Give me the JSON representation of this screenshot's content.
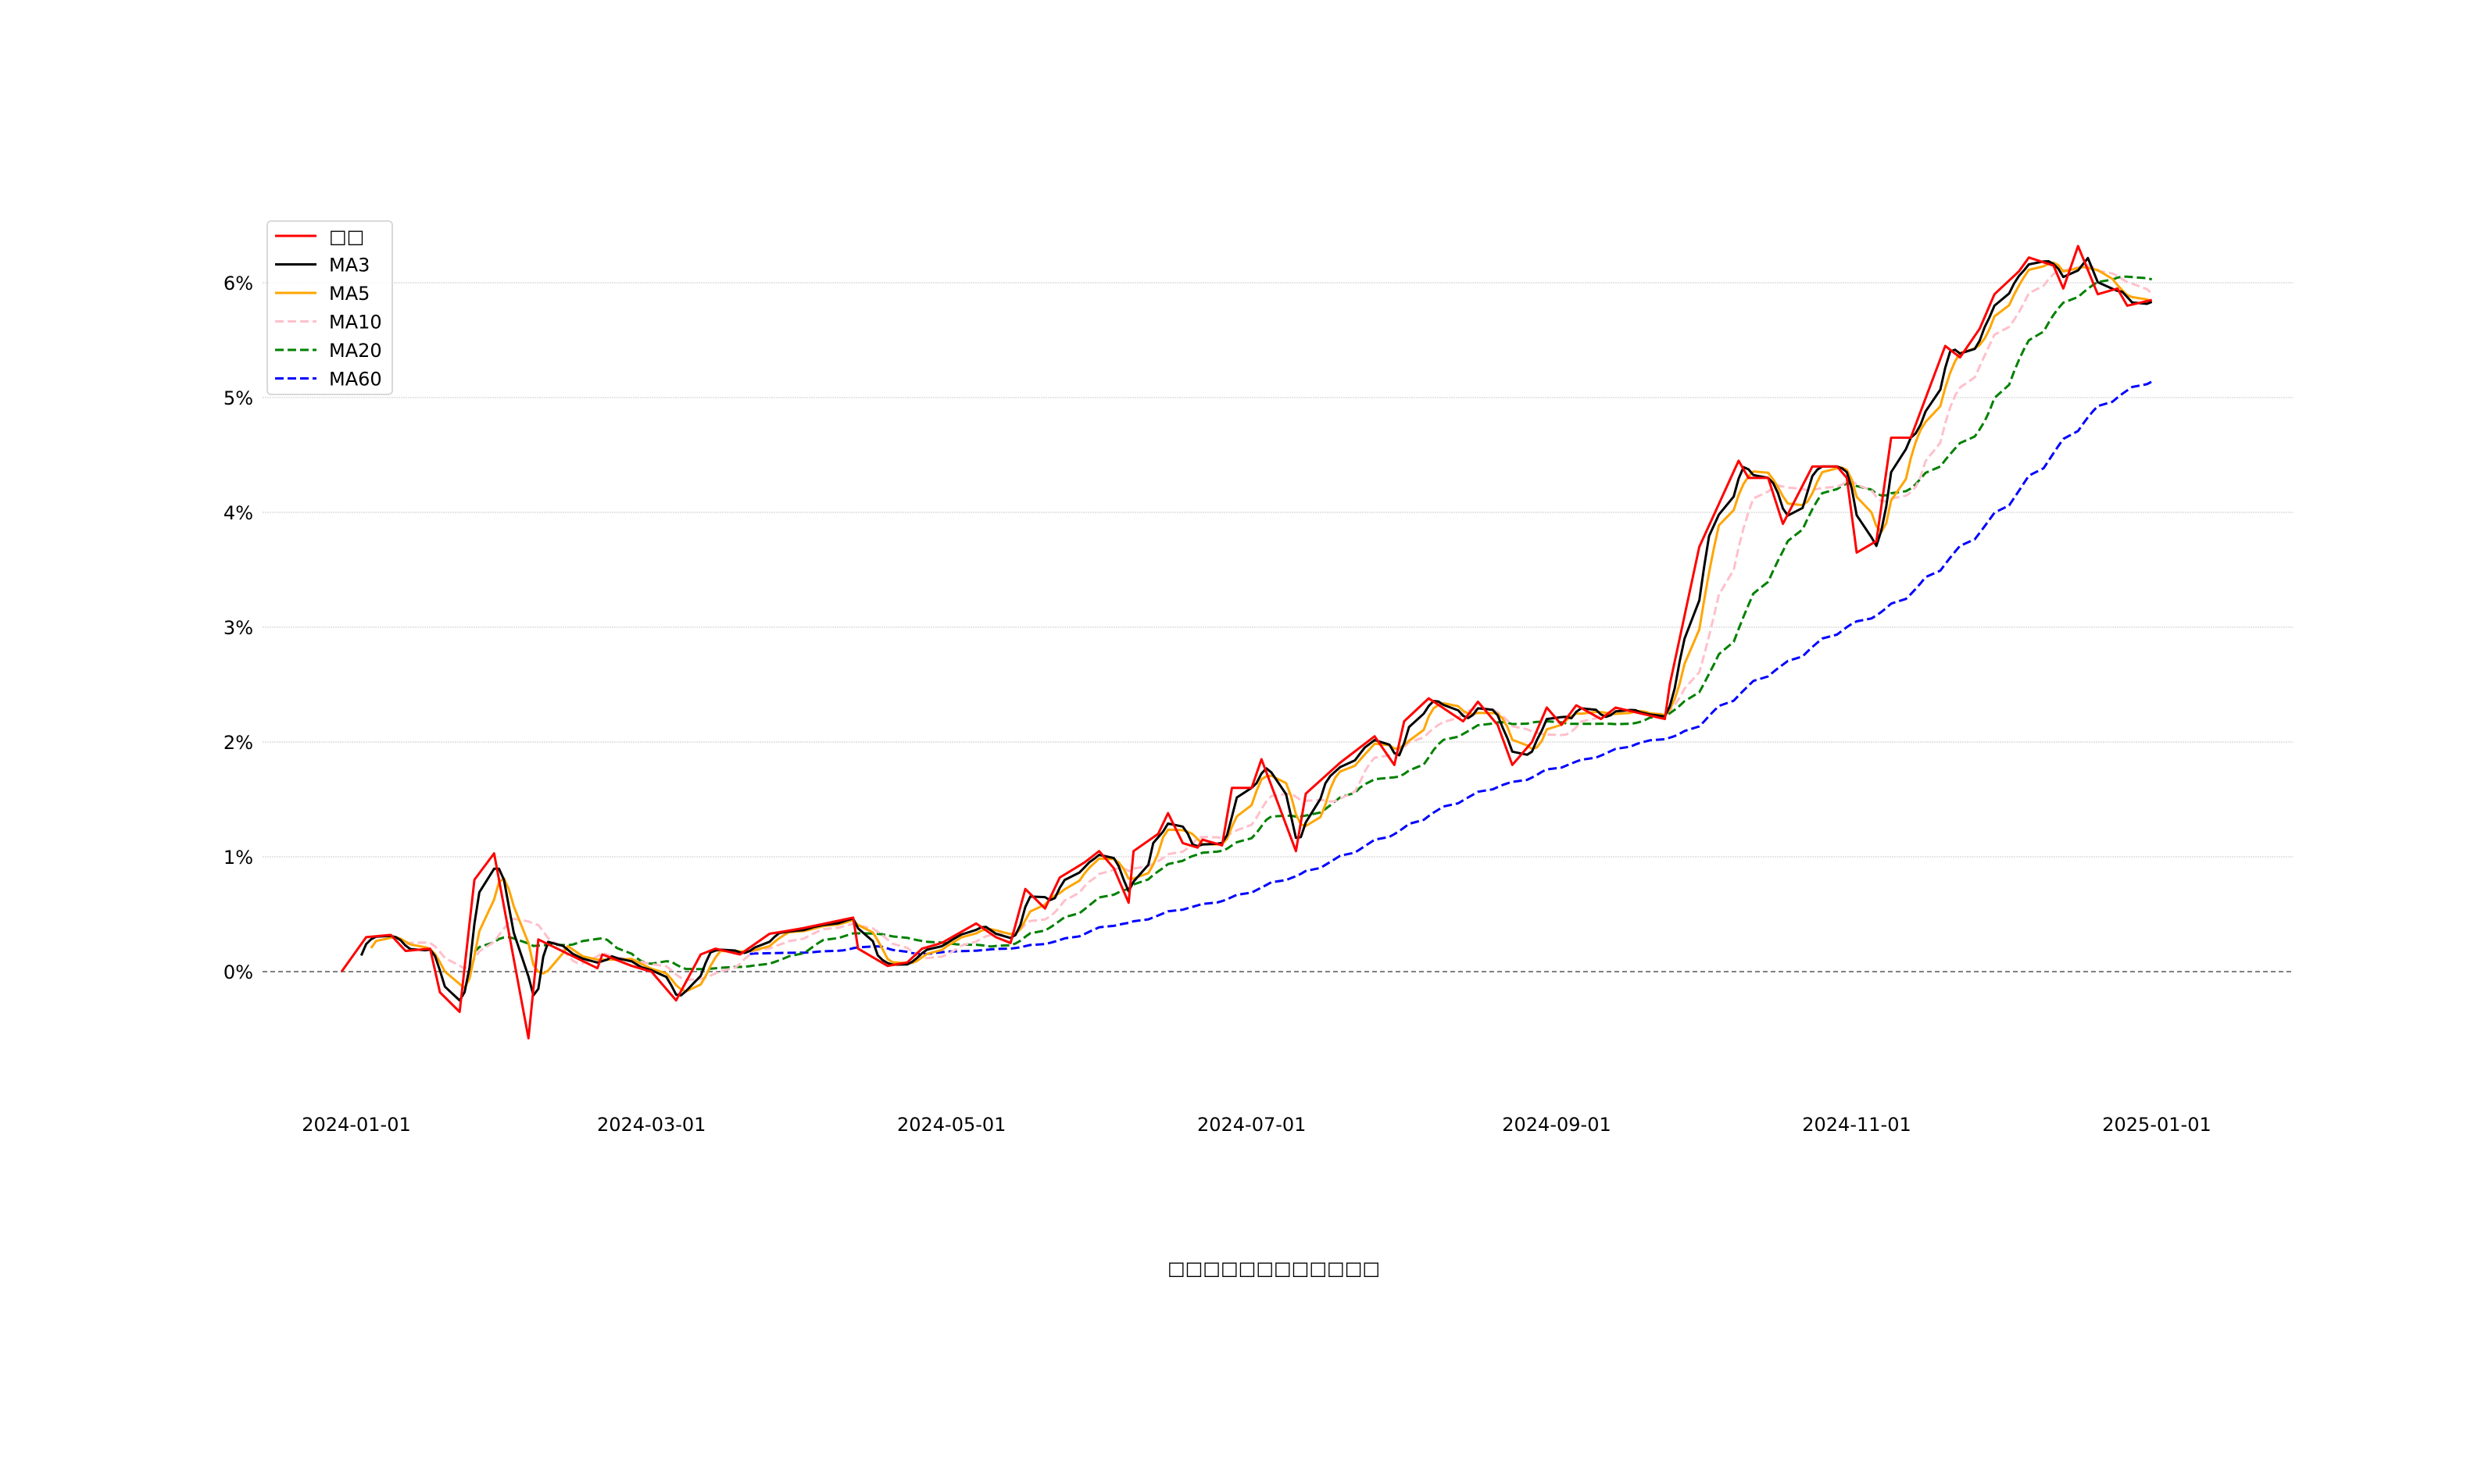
{
  "chart_data": {
    "type": "line",
    "title": "",
    "xlabel": "□□□□□□□□□□□□",
    "ylabel": "",
    "ylim": [
      -1.0,
      6.6
    ],
    "xlim": [
      "2023-12-24",
      "2025-01-07"
    ],
    "grid": "horizontal",
    "legend_position": "top-left",
    "x_ticks": [
      "2024-01-01",
      "2024-03-01",
      "2024-05-01",
      "2024-07-01",
      "2024-09-01",
      "2024-11-01",
      "2025-01-01"
    ],
    "y_ticks": [
      0,
      1,
      2,
      3,
      4,
      5,
      6
    ],
    "y_tick_labels": [
      "0%",
      "1%",
      "2%",
      "3%",
      "4%",
      "5%",
      "6%"
    ],
    "reference_line": 0,
    "series": [
      {
        "name": "□□",
        "color": "#ff0000",
        "style": "solid",
        "window": 1,
        "points": [
          [
            "2023-12-29",
            0
          ],
          [
            "2024-01-03",
            0.3
          ],
          [
            "2024-01-08",
            0.32
          ],
          [
            "2024-01-11",
            0.18
          ],
          [
            "2024-01-16",
            0.2
          ],
          [
            "2024-01-18",
            -0.18
          ],
          [
            "2024-01-22",
            -0.35
          ],
          [
            "2024-01-25",
            0.8
          ],
          [
            "2024-01-29",
            1.03
          ],
          [
            "2024-02-05",
            -0.58
          ],
          [
            "2024-02-07",
            0.28
          ],
          [
            "2024-02-19",
            0.03
          ],
          [
            "2024-02-20",
            0.15
          ],
          [
            "2024-02-26",
            0.05
          ],
          [
            "2024-03-01",
            0.0
          ],
          [
            "2024-03-06",
            -0.25
          ],
          [
            "2024-03-11",
            0.15
          ],
          [
            "2024-03-14",
            0.2
          ],
          [
            "2024-03-19",
            0.15
          ],
          [
            "2024-03-25",
            0.33
          ],
          [
            "2024-03-28",
            0.35
          ],
          [
            "2024-04-01",
            0.38
          ],
          [
            "2024-04-11",
            0.47
          ],
          [
            "2024-04-12",
            0.2
          ],
          [
            "2024-04-18",
            0.05
          ],
          [
            "2024-04-22",
            0.08
          ],
          [
            "2024-04-25",
            0.2
          ],
          [
            "2024-04-29",
            0.25
          ],
          [
            "2024-05-06",
            0.42
          ],
          [
            "2024-05-10",
            0.3
          ],
          [
            "2024-05-13",
            0.25
          ],
          [
            "2024-05-16",
            0.72
          ],
          [
            "2024-05-20",
            0.55
          ],
          [
            "2024-05-23",
            0.82
          ],
          [
            "2024-05-28",
            0.95
          ],
          [
            "2024-05-31",
            1.05
          ],
          [
            "2024-06-03",
            0.9
          ],
          [
            "2024-06-06",
            0.6
          ],
          [
            "2024-06-07",
            1.05
          ],
          [
            "2024-06-12",
            1.2
          ],
          [
            "2024-06-14",
            1.38
          ],
          [
            "2024-06-17",
            1.12
          ],
          [
            "2024-06-20",
            1.08
          ],
          [
            "2024-06-21",
            1.15
          ],
          [
            "2024-06-25",
            1.1
          ],
          [
            "2024-06-27",
            1.6
          ],
          [
            "2024-07-01",
            1.6
          ],
          [
            "2024-07-03",
            1.85
          ],
          [
            "2024-07-10",
            1.05
          ],
          [
            "2024-07-12",
            1.55
          ],
          [
            "2024-07-19",
            1.82
          ],
          [
            "2024-07-26",
            2.05
          ],
          [
            "2024-07-30",
            1.8
          ],
          [
            "2024-08-01",
            2.18
          ],
          [
            "2024-08-06",
            2.38
          ],
          [
            "2024-08-13",
            2.18
          ],
          [
            "2024-08-16",
            2.35
          ],
          [
            "2024-08-20",
            2.15
          ],
          [
            "2024-08-23",
            1.8
          ],
          [
            "2024-08-27",
            2.0
          ],
          [
            "2024-08-30",
            2.3
          ],
          [
            "2024-09-02",
            2.15
          ],
          [
            "2024-09-05",
            2.32
          ],
          [
            "2024-09-10",
            2.2
          ],
          [
            "2024-09-13",
            2.3
          ],
          [
            "2024-09-18",
            2.25
          ],
          [
            "2024-09-23",
            2.2
          ],
          [
            "2024-09-24",
            2.5
          ],
          [
            "2024-09-30",
            3.7
          ],
          [
            "2024-10-08",
            4.45
          ],
          [
            "2024-10-10",
            4.3
          ],
          [
            "2024-10-14",
            4.3
          ],
          [
            "2024-10-17",
            3.9
          ],
          [
            "2024-10-23",
            4.4
          ],
          [
            "2024-10-28",
            4.4
          ],
          [
            "2024-10-30",
            4.3
          ],
          [
            "2024-11-01",
            3.65
          ],
          [
            "2024-11-05",
            3.75
          ],
          [
            "2024-11-08",
            4.65
          ],
          [
            "2024-11-12",
            4.65
          ],
          [
            "2024-11-19",
            5.45
          ],
          [
            "2024-11-22",
            5.35
          ],
          [
            "2024-11-26",
            5.6
          ],
          [
            "2024-11-29",
            5.9
          ],
          [
            "2024-12-04",
            6.1
          ],
          [
            "2024-12-06",
            6.22
          ],
          [
            "2024-12-11",
            6.15
          ],
          [
            "2024-12-13",
            5.95
          ],
          [
            "2024-12-16",
            6.32
          ],
          [
            "2024-12-20",
            5.9
          ],
          [
            "2024-12-24",
            5.95
          ],
          [
            "2024-12-26",
            5.8
          ],
          [
            "2024-12-31",
            5.85
          ]
        ]
      },
      {
        "name": "MA3",
        "color": "#000000",
        "style": "solid",
        "window": 3
      },
      {
        "name": "MA5",
        "color": "#ffa500",
        "style": "solid",
        "window": 5
      },
      {
        "name": "MA10",
        "color": "#ffc0cb",
        "style": "dashed",
        "window": 10
      },
      {
        "name": "MA20",
        "color": "#008000",
        "style": "dashed",
        "window": 20
      },
      {
        "name": "MA60",
        "color": "#0000ff",
        "style": "dashed",
        "window": 60
      }
    ]
  }
}
